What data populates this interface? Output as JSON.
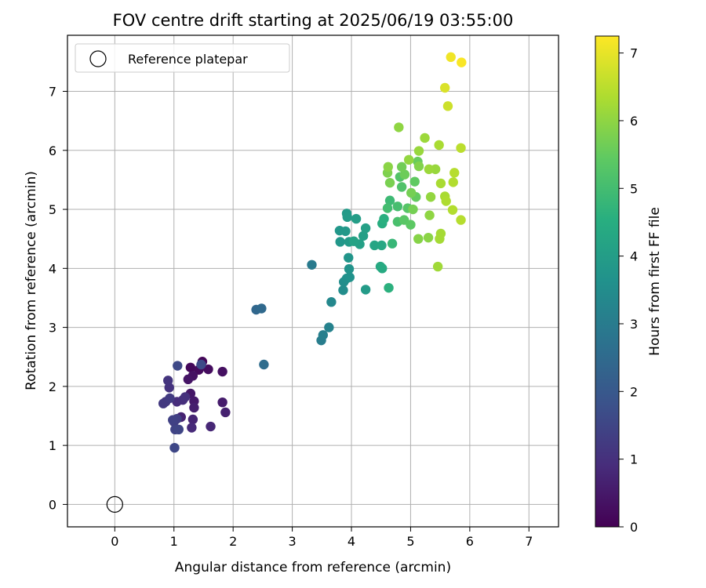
{
  "chart_data": {
    "type": "scatter",
    "title": "FOV centre drift starting at 2025/06/19 03:55:00",
    "xlabel": "Angular distance from reference (arcmin)",
    "ylabel": "Rotation from reference (arcmin)",
    "xlim": [
      -0.8,
      7.5
    ],
    "ylim": [
      -0.38,
      7.95
    ],
    "xticks": [
      0,
      1,
      2,
      3,
      4,
      5,
      6,
      7
    ],
    "yticks": [
      0,
      1,
      2,
      3,
      4,
      5,
      6,
      7
    ],
    "grid": true,
    "legend": {
      "placement": "top-left",
      "entries": [
        "Reference platepar"
      ]
    },
    "reference_point": {
      "x": 0,
      "y": 0,
      "label": "Reference platepar"
    },
    "colorbar": {
      "label": "Hours from first FF file",
      "colormap": "viridis",
      "range": [
        0,
        7.25
      ],
      "ticks": [
        0,
        1,
        2,
        3,
        4,
        5,
        6,
        7
      ]
    },
    "points": [
      {
        "x": 1.48,
        "y": 2.42,
        "c": 0.1
      },
      {
        "x": 1.28,
        "y": 2.32,
        "c": 0.15
      },
      {
        "x": 1.42,
        "y": 2.28,
        "c": 0.2
      },
      {
        "x": 1.58,
        "y": 2.29,
        "c": 0.25
      },
      {
        "x": 1.82,
        "y": 2.25,
        "c": 0.3
      },
      {
        "x": 1.32,
        "y": 2.18,
        "c": 0.35
      },
      {
        "x": 1.24,
        "y": 2.12,
        "c": 0.4
      },
      {
        "x": 1.28,
        "y": 1.88,
        "c": 0.45
      },
      {
        "x": 1.34,
        "y": 1.75,
        "c": 0.5
      },
      {
        "x": 1.82,
        "y": 1.73,
        "c": 0.55
      },
      {
        "x": 1.34,
        "y": 1.64,
        "c": 0.6
      },
      {
        "x": 1.87,
        "y": 1.56,
        "c": 0.65
      },
      {
        "x": 1.12,
        "y": 1.48,
        "c": 0.7
      },
      {
        "x": 1.32,
        "y": 1.44,
        "c": 0.75
      },
      {
        "x": 1.62,
        "y": 1.32,
        "c": 0.8
      },
      {
        "x": 1.3,
        "y": 1.3,
        "c": 0.85
      },
      {
        "x": 1.05,
        "y": 1.74,
        "c": 0.9
      },
      {
        "x": 1.15,
        "y": 1.77,
        "c": 0.95
      },
      {
        "x": 1.19,
        "y": 1.82,
        "c": 1.0
      },
      {
        "x": 0.92,
        "y": 1.98,
        "c": 1.05
      },
      {
        "x": 0.9,
        "y": 2.1,
        "c": 1.1
      },
      {
        "x": 0.86,
        "y": 1.74,
        "c": 1.15
      },
      {
        "x": 0.82,
        "y": 1.71,
        "c": 1.2
      },
      {
        "x": 0.93,
        "y": 1.8,
        "c": 1.25
      },
      {
        "x": 1.0,
        "y": 1.4,
        "c": 1.3
      },
      {
        "x": 1.05,
        "y": 1.45,
        "c": 1.35
      },
      {
        "x": 0.98,
        "y": 1.43,
        "c": 1.4
      },
      {
        "x": 1.02,
        "y": 1.27,
        "c": 1.45
      },
      {
        "x": 1.08,
        "y": 1.27,
        "c": 1.5
      },
      {
        "x": 1.01,
        "y": 0.96,
        "c": 1.55
      },
      {
        "x": 1.06,
        "y": 2.35,
        "c": 1.6
      },
      {
        "x": 1.46,
        "y": 2.37,
        "c": 1.65
      },
      {
        "x": 2.39,
        "y": 3.3,
        "c": 2.4
      },
      {
        "x": 2.48,
        "y": 3.32,
        "c": 2.45
      },
      {
        "x": 2.52,
        "y": 2.37,
        "c": 2.55
      },
      {
        "x": 3.33,
        "y": 4.06,
        "c": 2.95
      },
      {
        "x": 3.49,
        "y": 2.78,
        "c": 3.05
      },
      {
        "x": 3.52,
        "y": 2.87,
        "c": 3.1
      },
      {
        "x": 3.62,
        "y": 3.0,
        "c": 3.2
      },
      {
        "x": 3.66,
        "y": 3.43,
        "c": 3.35
      },
      {
        "x": 3.86,
        "y": 3.63,
        "c": 3.5
      },
      {
        "x": 3.87,
        "y": 3.77,
        "c": 3.55
      },
      {
        "x": 3.92,
        "y": 3.83,
        "c": 3.6
      },
      {
        "x": 3.97,
        "y": 3.85,
        "c": 3.65
      },
      {
        "x": 3.96,
        "y": 3.99,
        "c": 3.7
      },
      {
        "x": 3.95,
        "y": 4.18,
        "c": 3.75
      },
      {
        "x": 3.81,
        "y": 4.45,
        "c": 3.8
      },
      {
        "x": 3.8,
        "y": 4.64,
        "c": 3.8
      },
      {
        "x": 3.9,
        "y": 4.63,
        "c": 3.85
      },
      {
        "x": 3.96,
        "y": 4.45,
        "c": 3.9
      },
      {
        "x": 3.92,
        "y": 4.93,
        "c": 3.9
      },
      {
        "x": 3.93,
        "y": 4.87,
        "c": 3.95
      },
      {
        "x": 4.08,
        "y": 4.84,
        "c": 4.0
      },
      {
        "x": 4.2,
        "y": 4.55,
        "c": 4.05
      },
      {
        "x": 4.24,
        "y": 4.68,
        "c": 4.1
      },
      {
        "x": 4.14,
        "y": 4.41,
        "c": 4.1
      },
      {
        "x": 4.24,
        "y": 3.64,
        "c": 3.95
      },
      {
        "x": 4.04,
        "y": 4.46,
        "c": 4.15
      },
      {
        "x": 4.39,
        "y": 4.39,
        "c": 4.25
      },
      {
        "x": 4.51,
        "y": 4.39,
        "c": 4.3
      },
      {
        "x": 4.49,
        "y": 4.03,
        "c": 4.35
      },
      {
        "x": 4.52,
        "y": 4.0,
        "c": 4.4
      },
      {
        "x": 4.52,
        "y": 4.76,
        "c": 4.5
      },
      {
        "x": 4.55,
        "y": 4.84,
        "c": 4.55
      },
      {
        "x": 4.63,
        "y": 3.67,
        "c": 4.6
      },
      {
        "x": 4.69,
        "y": 4.42,
        "c": 4.8
      },
      {
        "x": 4.65,
        "y": 5.15,
        "c": 4.9
      },
      {
        "x": 4.61,
        "y": 5.02,
        "c": 5.0
      },
      {
        "x": 4.78,
        "y": 5.05,
        "c": 5.05
      },
      {
        "x": 4.78,
        "y": 4.79,
        "c": 5.1
      },
      {
        "x": 4.85,
        "y": 5.38,
        "c": 5.2
      },
      {
        "x": 4.82,
        "y": 5.55,
        "c": 5.25
      },
      {
        "x": 4.95,
        "y": 5.02,
        "c": 5.3
      },
      {
        "x": 4.89,
        "y": 4.82,
        "c": 5.35
      },
      {
        "x": 5.0,
        "y": 4.74,
        "c": 5.4
      },
      {
        "x": 5.07,
        "y": 5.47,
        "c": 5.45
      },
      {
        "x": 5.09,
        "y": 5.21,
        "c": 5.5
      },
      {
        "x": 5.12,
        "y": 5.81,
        "c": 5.55
      },
      {
        "x": 4.9,
        "y": 5.59,
        "c": 5.6
      },
      {
        "x": 4.85,
        "y": 5.72,
        "c": 5.65
      },
      {
        "x": 5.04,
        "y": 5.0,
        "c": 5.7
      },
      {
        "x": 5.01,
        "y": 5.28,
        "c": 5.7
      },
      {
        "x": 4.65,
        "y": 5.45,
        "c": 5.75
      },
      {
        "x": 4.61,
        "y": 5.62,
        "c": 5.8
      },
      {
        "x": 5.14,
        "y": 5.73,
        "c": 5.85
      },
      {
        "x": 5.13,
        "y": 4.5,
        "c": 5.9
      },
      {
        "x": 5.3,
        "y": 4.52,
        "c": 5.95
      },
      {
        "x": 5.32,
        "y": 4.9,
        "c": 6.0
      },
      {
        "x": 5.34,
        "y": 5.21,
        "c": 6.05
      },
      {
        "x": 5.42,
        "y": 5.68,
        "c": 6.1
      },
      {
        "x": 5.31,
        "y": 5.68,
        "c": 6.15
      },
      {
        "x": 5.46,
        "y": 4.03,
        "c": 6.2
      },
      {
        "x": 5.49,
        "y": 4.5,
        "c": 6.25
      },
      {
        "x": 5.51,
        "y": 4.59,
        "c": 6.25
      },
      {
        "x": 5.51,
        "y": 5.44,
        "c": 6.3
      },
      {
        "x": 5.58,
        "y": 5.22,
        "c": 6.3
      },
      {
        "x": 5.6,
        "y": 5.14,
        "c": 6.35
      },
      {
        "x": 5.71,
        "y": 4.99,
        "c": 6.4
      },
      {
        "x": 5.72,
        "y": 5.46,
        "c": 6.4
      },
      {
        "x": 5.74,
        "y": 5.62,
        "c": 6.45
      },
      {
        "x": 5.85,
        "y": 4.82,
        "c": 6.45
      },
      {
        "x": 4.62,
        "y": 5.72,
        "c": 5.95
      },
      {
        "x": 4.8,
        "y": 6.39,
        "c": 6.0
      },
      {
        "x": 4.97,
        "y": 5.84,
        "c": 6.05
      },
      {
        "x": 5.14,
        "y": 5.99,
        "c": 6.1
      },
      {
        "x": 5.24,
        "y": 6.21,
        "c": 6.15
      },
      {
        "x": 5.48,
        "y": 6.09,
        "c": 6.3
      },
      {
        "x": 5.85,
        "y": 6.04,
        "c": 6.5
      },
      {
        "x": 5.63,
        "y": 6.75,
        "c": 6.7
      },
      {
        "x": 5.58,
        "y": 7.06,
        "c": 6.85
      },
      {
        "x": 5.68,
        "y": 7.58,
        "c": 7.1
      },
      {
        "x": 5.86,
        "y": 7.49,
        "c": 7.2
      }
    ]
  }
}
